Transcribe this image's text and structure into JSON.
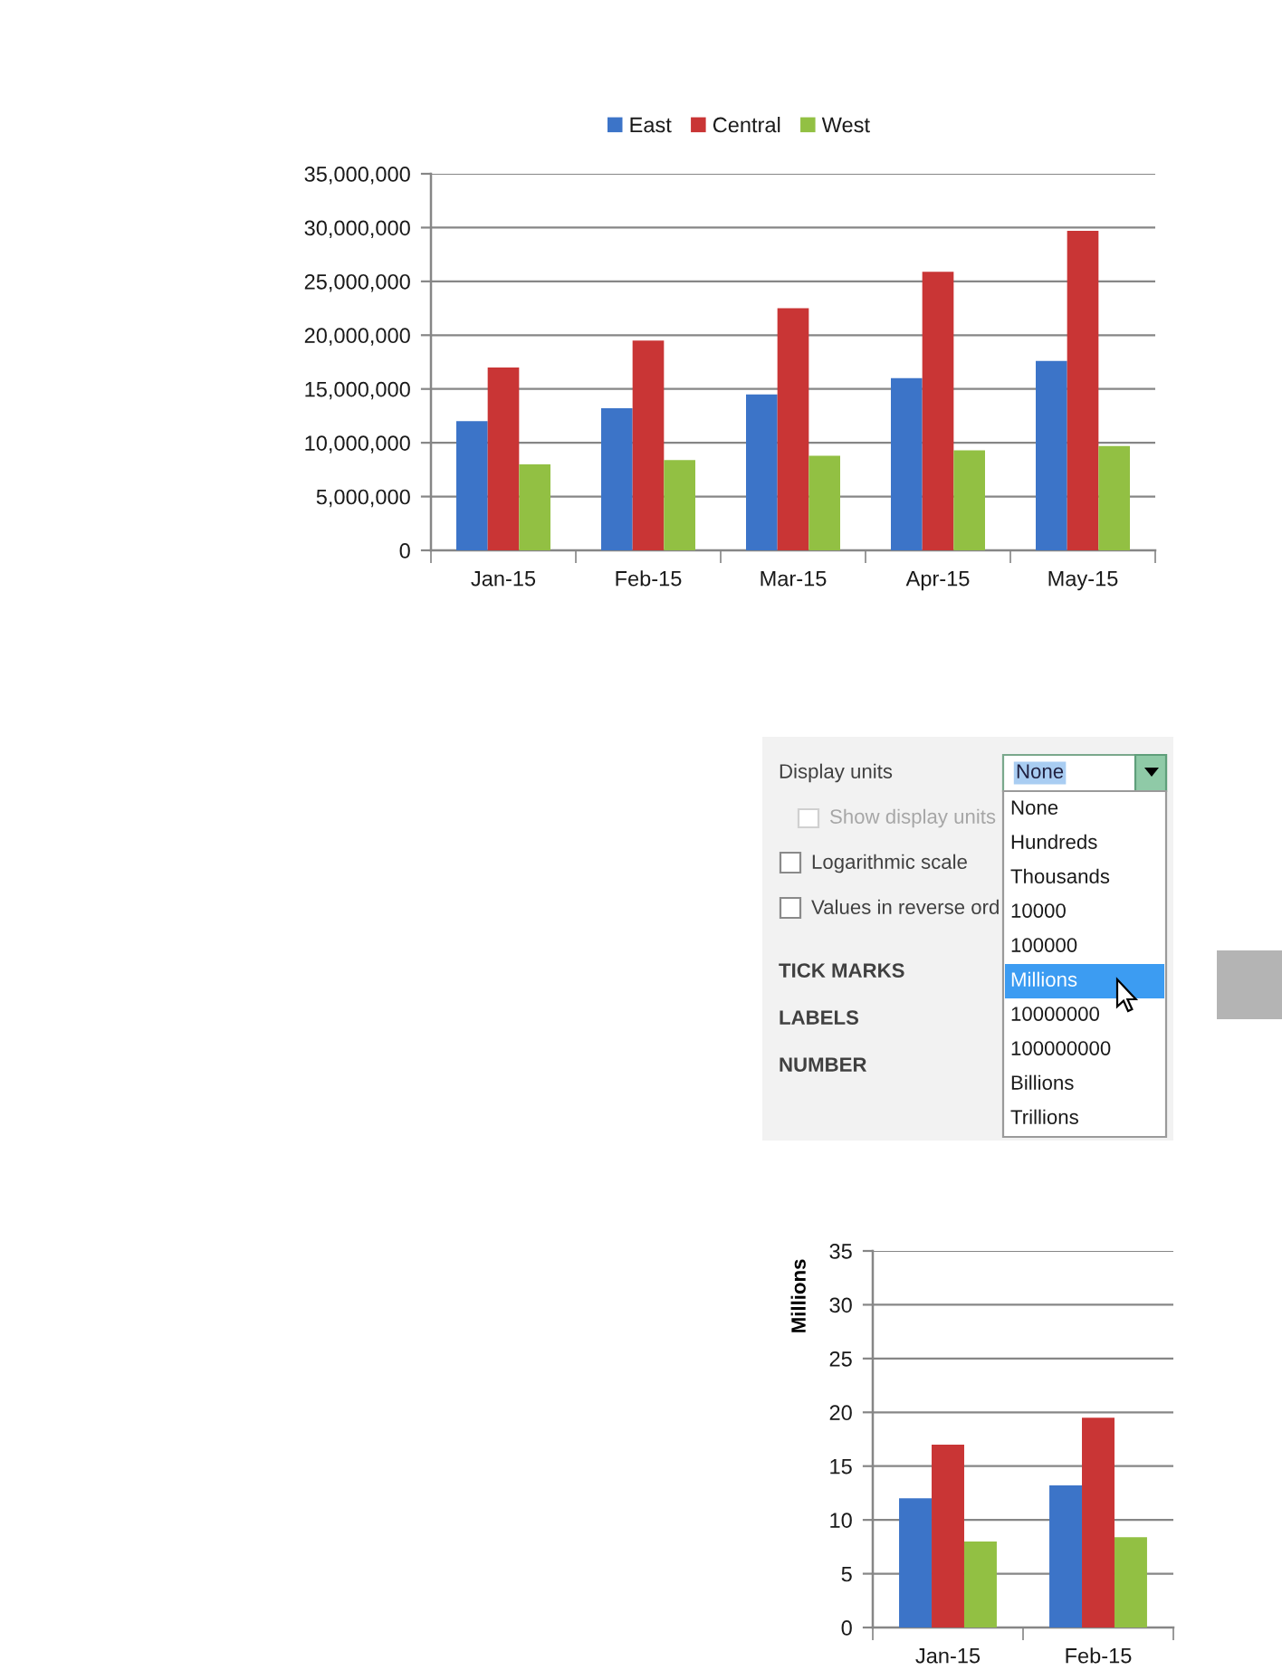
{
  "chart_data": [
    {
      "type": "bar",
      "categories": [
        "Jan-15",
        "Feb-15",
        "Mar-15",
        "Apr-15",
        "May-15"
      ],
      "series": [
        {
          "name": "East",
          "color": "#3c74c8",
          "values": [
            12000000,
            13200000,
            14500000,
            16000000,
            17600000
          ]
        },
        {
          "name": "Central",
          "color": "#c93535",
          "values": [
            17000000,
            19500000,
            22500000,
            25900000,
            29700000
          ]
        },
        {
          "name": "West",
          "color": "#92c043",
          "values": [
            8000000,
            8400000,
            8800000,
            9300000,
            9700000
          ]
        }
      ],
      "ylim": [
        0,
        35000000
      ],
      "yticks": [
        0,
        {
          "value": 5000000,
          "label": "5,000,000"
        },
        {
          "value": 10000000,
          "label": "10,000,000"
        },
        {
          "value": 15000000,
          "label": "15,000,000"
        },
        {
          "value": 20000000,
          "label": "20,000,000"
        },
        {
          "value": 25000000,
          "label": "25,000,000"
        },
        {
          "value": 30000000,
          "label": "30,000,000"
        },
        {
          "value": 35000000,
          "label": "35,000,000"
        }
      ],
      "grid": "y",
      "legend": "top"
    },
    {
      "type": "other",
      "annotations": [
        "Display units",
        "None",
        "Show display units",
        "Logarithmic scale",
        "Values in reverse ord",
        "TICK MARKS",
        "LABELS",
        "NUMBER"
      ],
      "categories": [
        "None",
        "Hundreds",
        "Thousands",
        "10000",
        "100000",
        "Millions",
        "10000000",
        "100000000",
        "Billions",
        "Trillions"
      ]
    },
    {
      "type": "bar",
      "categories": [
        "Jan-15",
        "Feb-15"
      ],
      "ylabel": "Millions",
      "series": [
        {
          "color": "#3c74c8",
          "values": [
            12,
            13.2
          ]
        },
        {
          "color": "#c93535",
          "values": [
            17,
            19.5
          ]
        },
        {
          "color": "#92c043",
          "values": [
            8,
            8.4
          ]
        }
      ],
      "ylim": [
        0,
        35
      ],
      "yticks": [
        0,
        5,
        10,
        15,
        20,
        25,
        30,
        35
      ],
      "grid": "y"
    }
  ]
}
